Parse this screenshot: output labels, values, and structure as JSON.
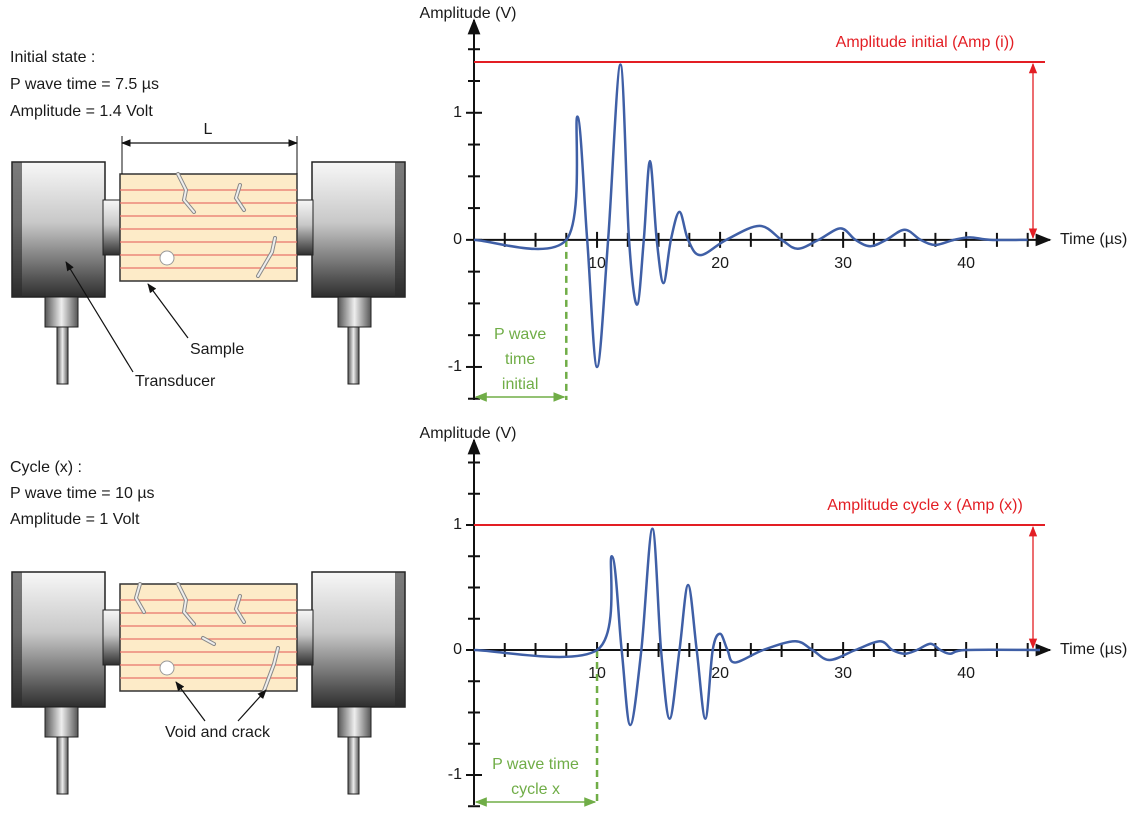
{
  "chart_data": [
    {
      "type": "line",
      "y_label": "Amplitude (V)",
      "x_label": "Time (µs)",
      "color": "#3f5fa6",
      "x": [
        0,
        7.5,
        8.4,
        9.2,
        10.0,
        10.9,
        11.9,
        12.6,
        13.25,
        13.8,
        14.3,
        14.85,
        15.4,
        16.0,
        16.7,
        17.4,
        18.4,
        20.5,
        23.2,
        25,
        26.3,
        28,
        29.8,
        31,
        32.2,
        33.5,
        35,
        36.3,
        37.5,
        39,
        40.3,
        42,
        45
      ],
      "values": [
        0,
        0,
        0.97,
        0,
        -1.0,
        0,
        1.38,
        0,
        -0.51,
        0,
        0.62,
        0,
        -0.34,
        0,
        0.22,
        0,
        -0.12,
        0,
        0.11,
        0,
        -0.07,
        0,
        0.09,
        0,
        -0.05,
        0,
        0.08,
        0,
        -0.04,
        0,
        0.02,
        0,
        0
      ],
      "xlim": [
        0,
        46
      ],
      "ylim": [
        -1.26,
        1.73
      ],
      "xticks": [
        10,
        20,
        30,
        40
      ],
      "xminorticks": [
        2.5,
        5,
        7.5,
        12.5,
        15,
        17.5,
        22.5,
        25,
        27.5,
        32.5,
        35,
        37.5,
        42.5,
        45
      ],
      "yticks": [
        -1,
        0,
        1
      ],
      "yminorticks": [
        -1.25,
        -0.75,
        -0.5,
        -0.25,
        0.25,
        0.5,
        0.75,
        1.25,
        1.5
      ],
      "hline": {
        "value": 1.4,
        "label": "Amplitude initial (Amp (i))",
        "color": "#e31e24"
      },
      "vline": {
        "value": 7.5,
        "label_lines": [
          "P wave",
          "time",
          "initial"
        ],
        "color": "#70ad47"
      }
    },
    {
      "type": "line",
      "y_label": "Amplitude (V)",
      "x_label": "Time (µs)",
      "color": "#3f5fa6",
      "x": [
        0,
        10,
        11.2,
        12.0,
        12.7,
        13.6,
        14.5,
        15.2,
        15.9,
        16.7,
        17.4,
        18.1,
        18.8,
        19.4,
        20,
        20.6,
        21.2,
        23.5,
        26.1,
        27.5,
        28.9,
        31,
        33,
        34,
        35,
        36,
        37.1,
        37.9,
        38.7,
        40,
        46
      ],
      "values": [
        0,
        0,
        0.75,
        0,
        -0.6,
        0,
        0.97,
        0,
        -0.55,
        0,
        0.52,
        0,
        -0.55,
        0,
        0.13,
        0,
        -0.1,
        0,
        0.07,
        0,
        -0.08,
        0,
        0.07,
        0,
        -0.03,
        0,
        0.05,
        0,
        -0.03,
        0,
        0
      ],
      "xlim": [
        0,
        46
      ],
      "ylim": [
        -1.24,
        1.68
      ],
      "xticks": [
        10,
        20,
        30,
        40
      ],
      "xminorticks": [
        2.5,
        5,
        7.5,
        12.5,
        15,
        17.5,
        22.5,
        25,
        27.5,
        32.5,
        35,
        37.5,
        42.5,
        45
      ],
      "yticks": [
        -1,
        0,
        1
      ],
      "yminorticks": [
        -1.25,
        -0.75,
        -0.5,
        -0.25,
        0.25,
        0.5,
        0.75,
        1.25,
        1.5
      ],
      "hline": {
        "value": 1,
        "label": "Amplitude cycle x (Amp (x))",
        "color": "#e31e24"
      },
      "vline": {
        "value": 10,
        "label_lines": [
          "P wave time",
          "cycle x"
        ],
        "color": "#70ad47"
      }
    }
  ],
  "panels": [
    {
      "heading": "Initial state :",
      "lines": [
        "P wave time = 7.5 µs",
        "Amplitude = 1.4 Volt"
      ],
      "length_label": "L",
      "sample_label": "Sample",
      "transducer_label": "Transducer"
    },
    {
      "heading": "Cycle (x) :",
      "lines": [
        "P wave time = 10 µs",
        "Amplitude = 1 Volt"
      ],
      "defect_label": "Void and crack"
    }
  ]
}
